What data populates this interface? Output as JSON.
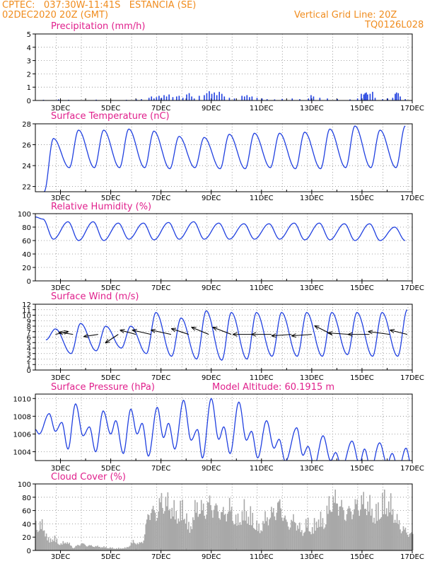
{
  "header": {
    "line1": "CPTEC:   037:30W-11:41S   ESTANCIA (SE)",
    "line2": "02DEC2020 20Z (GMT)",
    "grid_note": "Vertical Grid Line: 20Z",
    "run_id": "TQ0126L028"
  },
  "colors": {
    "header": "#f08c1e",
    "title": "#e0208c",
    "line": "#2040e0",
    "cloud": "#a8a8a8",
    "wind_arrow": "#000000"
  },
  "x_ticks": [
    "3DEC",
    "5DEC",
    "7DEC",
    "9DEC",
    "11DEC",
    "13DEC",
    "15DEC",
    "17DEC"
  ],
  "chart_data": [
    {
      "id": "precip",
      "type": "bar",
      "title": "Precipitation (mm/h)",
      "x_range_days": [
        2.0,
        17.0
      ],
      "ylim": [
        0,
        5
      ],
      "yticks": [
        "0",
        "1",
        "2",
        "3",
        "4",
        "5"
      ],
      "values": [
        [
          2.3,
          0.05
        ],
        [
          2.9,
          0.08
        ],
        [
          3.3,
          0.05
        ],
        [
          4.4,
          0.06
        ],
        [
          5.6,
          0.05
        ],
        [
          6.0,
          0.08
        ],
        [
          6.2,
          0.1
        ],
        [
          6.5,
          0.2
        ],
        [
          6.6,
          0.3
        ],
        [
          6.7,
          0.15
        ],
        [
          6.8,
          0.25
        ],
        [
          6.9,
          0.35
        ],
        [
          7.0,
          0.2
        ],
        [
          7.1,
          0.4
        ],
        [
          7.2,
          0.3
        ],
        [
          7.3,
          0.45
        ],
        [
          7.45,
          0.25
        ],
        [
          7.6,
          0.3
        ],
        [
          7.7,
          0.35
        ],
        [
          7.85,
          0.2
        ],
        [
          8.0,
          0.45
        ],
        [
          8.1,
          0.55
        ],
        [
          8.2,
          0.3
        ],
        [
          8.3,
          0.15
        ],
        [
          8.5,
          0.35
        ],
        [
          8.7,
          0.4
        ],
        [
          8.8,
          0.55
        ],
        [
          8.9,
          0.7
        ],
        [
          9.0,
          0.5
        ],
        [
          9.1,
          0.6
        ],
        [
          9.2,
          0.4
        ],
        [
          9.3,
          0.65
        ],
        [
          9.4,
          0.5
        ],
        [
          9.5,
          0.3
        ],
        [
          9.7,
          0.2
        ],
        [
          9.9,
          0.15
        ],
        [
          10.2,
          0.35
        ],
        [
          10.3,
          0.3
        ],
        [
          10.4,
          0.4
        ],
        [
          10.5,
          0.25
        ],
        [
          10.6,
          0.3
        ],
        [
          10.8,
          0.2
        ],
        [
          11.0,
          0.15
        ],
        [
          11.2,
          0.1
        ],
        [
          11.5,
          0.08
        ],
        [
          11.8,
          0.12
        ],
        [
          12.2,
          0.15
        ],
        [
          12.5,
          0.1
        ],
        [
          12.85,
          0.15
        ],
        [
          12.95,
          0.4
        ],
        [
          13.05,
          0.3
        ],
        [
          13.3,
          0.2
        ],
        [
          13.6,
          0.15
        ],
        [
          14.0,
          0.1
        ],
        [
          14.5,
          0.08
        ],
        [
          14.8,
          0.15
        ],
        [
          14.95,
          0.5
        ],
        [
          15.05,
          0.45
        ],
        [
          15.1,
          0.55
        ],
        [
          15.15,
          0.6
        ],
        [
          15.2,
          0.45
        ],
        [
          15.3,
          0.5
        ],
        [
          15.4,
          0.65
        ],
        [
          15.5,
          0.2
        ],
        [
          15.8,
          0.1
        ],
        [
          16.0,
          0.15
        ],
        [
          16.2,
          0.2
        ],
        [
          16.3,
          0.5
        ],
        [
          16.35,
          0.6
        ],
        [
          16.42,
          0.55
        ],
        [
          16.5,
          0.3
        ],
        [
          16.7,
          0.1
        ]
      ]
    },
    {
      "id": "temp",
      "type": "line",
      "title": "Surface Temperature (nC)",
      "x_range_days": [
        2.0,
        17.0
      ],
      "ylim": [
        21.5,
        28
      ],
      "yticks": [
        "22",
        "24",
        "26",
        "28"
      ],
      "daily_min": [
        21.5,
        23.8,
        23.8,
        23.8,
        23.8,
        23.7,
        23.8,
        23.7,
        23.7,
        23.8,
        23.7,
        23.7,
        23.8,
        23.8,
        23.8,
        24.5
      ],
      "daily_max": [
        26.6,
        27.4,
        27.4,
        27.5,
        27.3,
        26.8,
        26.7,
        27.0,
        27.1,
        27.1,
        27.2,
        27.5,
        27.8,
        27.4,
        27.8
      ]
    },
    {
      "id": "rh",
      "type": "line",
      "title": "Relative Humidity (%)",
      "x_range_days": [
        2.0,
        17.0
      ],
      "ylim": [
        0,
        100
      ],
      "yticks": [
        "0",
        "20",
        "40",
        "60",
        "80",
        "100"
      ],
      "daily_min": [
        62,
        60,
        60,
        62,
        61,
        62,
        62,
        62,
        62,
        62,
        61,
        61,
        60,
        60,
        60,
        62
      ],
      "daily_max": [
        92,
        88,
        88,
        86,
        86,
        87,
        88,
        86,
        85,
        85,
        86,
        86,
        85,
        85,
        80
      ]
    },
    {
      "id": "wind",
      "type": "line",
      "title": "Surface Wind (m/s)",
      "x_range_days": [
        2.0,
        17.0
      ],
      "ylim": [
        0,
        12
      ],
      "yticks": [
        "0",
        "1",
        "2",
        "3",
        "4",
        "5",
        "6",
        "7",
        "8",
        "9",
        "10",
        "11",
        "12"
      ],
      "daily_min": [
        5.5,
        3.0,
        3.5,
        4.0,
        3.0,
        2.5,
        2.0,
        1.8,
        2.0,
        2.5,
        2.5,
        2.5,
        2.8,
        2.5,
        2.5,
        2.5
      ],
      "daily_max": [
        7.5,
        8.5,
        8.0,
        8.0,
        10.5,
        9.5,
        10.8,
        10.5,
        10.5,
        10.5,
        10.5,
        10.5,
        10.5,
        10.5,
        11.0
      ],
      "barb_level": 6.5,
      "barbs": [
        {
          "day": 2.8,
          "dx": 18,
          "dy": -4
        },
        {
          "day": 3.5,
          "dx": -20,
          "dy": -3
        },
        {
          "day": 4.5,
          "dx": -20,
          "dy": 3
        },
        {
          "day": 5.3,
          "dx": -18,
          "dy": 12
        },
        {
          "day": 6.0,
          "dx": -22,
          "dy": -6
        },
        {
          "day": 6.6,
          "dx": -26,
          "dy": -6
        },
        {
          "day": 7.4,
          "dx": -28,
          "dy": -6
        },
        {
          "day": 8.1,
          "dx": -24,
          "dy": -8
        },
        {
          "day": 8.9,
          "dx": -24,
          "dy": -10
        },
        {
          "day": 9.8,
          "dx": -26,
          "dy": -10
        },
        {
          "day": 10.6,
          "dx": -26,
          "dy": 0
        },
        {
          "day": 11.4,
          "dx": -28,
          "dy": 0
        },
        {
          "day": 12.2,
          "dx": -28,
          "dy": 2
        },
        {
          "day": 13.0,
          "dx": -28,
          "dy": 2
        },
        {
          "day": 13.8,
          "dx": -24,
          "dy": -12
        },
        {
          "day": 14.5,
          "dx": -30,
          "dy": -2
        },
        {
          "day": 15.3,
          "dx": -30,
          "dy": 0
        },
        {
          "day": 16.1,
          "dx": -30,
          "dy": -4
        },
        {
          "day": 16.8,
          "dx": -24,
          "dy": -6
        }
      ]
    },
    {
      "id": "press",
      "type": "line",
      "title": "Surface Pressure (hPa)",
      "annotation": "Model Altitude: 60.1915 m",
      "x_range_days": [
        2.0,
        17.0
      ],
      "ylim": [
        1003,
        1010.5
      ],
      "yticks": [
        "1004",
        "1006",
        "1008",
        "1010"
      ],
      "extrema": [
        [
          2.0,
          1006.5
        ],
        [
          2.15,
          1006.0
        ],
        [
          2.55,
          1008.3
        ],
        [
          2.8,
          1006.3
        ],
        [
          3.05,
          1007.3
        ],
        [
          3.3,
          1004.3
        ],
        [
          3.6,
          1009.4
        ],
        [
          3.9,
          1005.8
        ],
        [
          4.15,
          1006.8
        ],
        [
          4.4,
          1004.0
        ],
        [
          4.7,
          1008.6
        ],
        [
          5.0,
          1006.0
        ],
        [
          5.2,
          1007.5
        ],
        [
          5.5,
          1003.8
        ],
        [
          5.8,
          1008.8
        ],
        [
          6.05,
          1006.0
        ],
        [
          6.25,
          1007.2
        ],
        [
          6.5,
          1003.5
        ],
        [
          6.85,
          1009.0
        ],
        [
          7.1,
          1005.6
        ],
        [
          7.3,
          1007.2
        ],
        [
          7.55,
          1004.3
        ],
        [
          7.9,
          1009.8
        ],
        [
          8.2,
          1005.3
        ],
        [
          8.45,
          1006.5
        ],
        [
          8.65,
          1003.3
        ],
        [
          9.0,
          1010.0
        ],
        [
          9.3,
          1005.4
        ],
        [
          9.5,
          1006.8
        ],
        [
          9.75,
          1003.8
        ],
        [
          10.1,
          1009.6
        ],
        [
          10.4,
          1005.3
        ],
        [
          10.6,
          1006.3
        ],
        [
          10.85,
          1003.3
        ],
        [
          11.2,
          1007.5
        ],
        [
          11.5,
          1004.4
        ],
        [
          11.7,
          1005.4
        ],
        [
          11.95,
          1002.9
        ],
        [
          12.4,
          1006.7
        ],
        [
          12.65,
          1003.6
        ],
        [
          12.85,
          1004.6
        ],
        [
          13.1,
          1002.4
        ],
        [
          13.45,
          1005.8
        ],
        [
          13.75,
          1003.0
        ],
        [
          13.95,
          1003.9
        ],
        [
          14.2,
          1002.2
        ],
        [
          14.6,
          1005.2
        ],
        [
          14.9,
          1002.6
        ],
        [
          15.1,
          1004.3
        ],
        [
          15.35,
          1002.0
        ],
        [
          15.7,
          1005.0
        ],
        [
          16.0,
          1002.6
        ],
        [
          16.2,
          1003.8
        ],
        [
          16.45,
          1002.0
        ],
        [
          16.75,
          1004.4
        ],
        [
          17.0,
          1002.0
        ]
      ]
    },
    {
      "id": "cloud",
      "type": "bar",
      "title": "Cloud Cover (%)",
      "x_range_days": [
        2.0,
        17.0
      ],
      "ylim": [
        0,
        100
      ],
      "yticks": [
        "0",
        "20",
        "40",
        "60",
        "80",
        "100"
      ],
      "envelope": [
        [
          2.0,
          50
        ],
        [
          2.3,
          48
        ],
        [
          2.5,
          20
        ],
        [
          2.7,
          25
        ],
        [
          3.0,
          12
        ],
        [
          3.2,
          18
        ],
        [
          3.5,
          5
        ],
        [
          3.8,
          14
        ],
        [
          4.0,
          10
        ],
        [
          4.4,
          8
        ],
        [
          4.8,
          6
        ],
        [
          5.2,
          4
        ],
        [
          5.6,
          5
        ],
        [
          5.9,
          18
        ],
        [
          6.1,
          12
        ],
        [
          6.3,
          22
        ],
        [
          6.5,
          80
        ],
        [
          6.8,
          72
        ],
        [
          7.0,
          98
        ],
        [
          7.3,
          90
        ],
        [
          7.6,
          70
        ],
        [
          7.9,
          85
        ],
        [
          8.1,
          40
        ],
        [
          8.4,
          88
        ],
        [
          8.7,
          78
        ],
        [
          8.9,
          92
        ],
        [
          9.2,
          80
        ],
        [
          9.5,
          70
        ],
        [
          9.7,
          85
        ],
        [
          10.0,
          55
        ],
        [
          10.3,
          78
        ],
        [
          10.6,
          65
        ],
        [
          10.9,
          40
        ],
        [
          11.1,
          60
        ],
        [
          11.4,
          72
        ],
        [
          11.7,
          90
        ],
        [
          12.0,
          50
        ],
        [
          12.3,
          60
        ],
        [
          12.6,
          35
        ],
        [
          12.8,
          55
        ],
        [
          13.0,
          40
        ],
        [
          13.2,
          62
        ],
        [
          13.5,
          55
        ],
        [
          13.7,
          95
        ],
        [
          14.0,
          98
        ],
        [
          14.3,
          72
        ],
        [
          14.6,
          80
        ],
        [
          14.9,
          95
        ],
        [
          15.2,
          92
        ],
        [
          15.5,
          68
        ],
        [
          15.8,
          95
        ],
        [
          16.1,
          90
        ],
        [
          16.4,
          55
        ],
        [
          16.7,
          38
        ],
        [
          17.0,
          30
        ]
      ]
    }
  ]
}
